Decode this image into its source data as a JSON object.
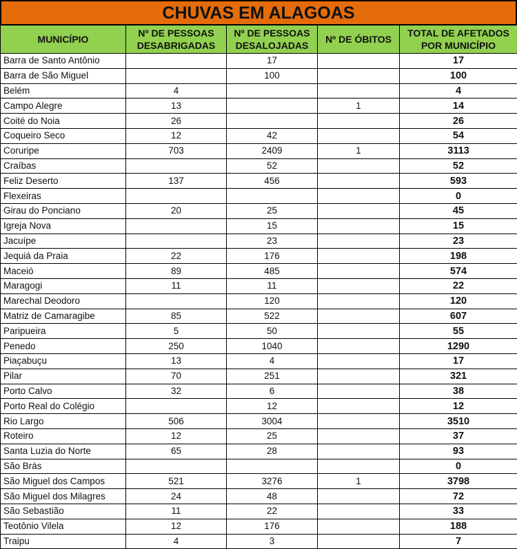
{
  "title": "CHUVAS EM ALAGOAS",
  "headers": [
    "MUNICÍPIO",
    "Nº DE PESSOAS DESABRIGADAS",
    "Nº DE PESSOAS DESALOJADAS",
    "Nº DE ÓBITOS",
    "TOTAL DE AFETADOS POR MUNICÍPIO"
  ],
  "rows": [
    [
      "Barra de Santo Antônio",
      "",
      "17",
      "",
      "17"
    ],
    [
      "Barra de São Miguel",
      "",
      "100",
      "",
      "100"
    ],
    [
      "Belém",
      "4",
      "",
      "",
      "4"
    ],
    [
      "Campo Alegre",
      "13",
      "",
      "1",
      "14"
    ],
    [
      "Coité do Noia",
      "26",
      "",
      "",
      "26"
    ],
    [
      "Coqueiro Seco",
      "12",
      "42",
      "",
      "54"
    ],
    [
      "Coruripe",
      "703",
      "2409",
      "1",
      "3113"
    ],
    [
      "Craíbas",
      "",
      "52",
      "",
      "52"
    ],
    [
      "Feliz Deserto",
      "137",
      "456",
      "",
      "593"
    ],
    [
      "Flexeiras",
      "",
      "",
      "",
      "0"
    ],
    [
      "Girau do Ponciano",
      "20",
      "25",
      "",
      "45"
    ],
    [
      "Igreja Nova",
      "",
      "15",
      "",
      "15"
    ],
    [
      "Jacuípe",
      "",
      "23",
      "",
      "23"
    ],
    [
      "Jequiá da Praia",
      "22",
      "176",
      "",
      "198"
    ],
    [
      "Maceió",
      "89",
      "485",
      "",
      "574"
    ],
    [
      "Maragogi",
      "11",
      "11",
      "",
      "22"
    ],
    [
      "Marechal Deodoro",
      "",
      "120",
      "",
      "120"
    ],
    [
      "Matriz de Camaragibe",
      "85",
      "522",
      "",
      "607"
    ],
    [
      "Paripueira",
      "5",
      "50",
      "",
      "55"
    ],
    [
      "Penedo",
      "250",
      "1040",
      "",
      "1290"
    ],
    [
      "Piaçabuçu",
      "13",
      "4",
      "",
      "17"
    ],
    [
      "Pilar",
      "70",
      "251",
      "",
      "321"
    ],
    [
      "Porto Calvo",
      "32",
      "6",
      "",
      "38"
    ],
    [
      "Porto Real do Colégio",
      "",
      "12",
      "",
      "12"
    ],
    [
      "Rio Largo",
      "506",
      "3004",
      "",
      "3510"
    ],
    [
      "Roteiro",
      "12",
      "25",
      "",
      "37"
    ],
    [
      "Santa Luzia do Norte",
      "65",
      "28",
      "",
      "93"
    ],
    [
      "São Brás",
      "",
      "",
      "",
      "0"
    ],
    [
      "São Miguel dos Campos",
      "521",
      "3276",
      "1",
      "3798"
    ],
    [
      "São Miguel dos Milagres",
      "24",
      "48",
      "",
      "72"
    ],
    [
      "São Sebastião",
      "11",
      "22",
      "",
      "33"
    ],
    [
      "Teotônio Vilela",
      "12",
      "176",
      "",
      "188"
    ],
    [
      "Traipu",
      "4",
      "3",
      "",
      "7"
    ]
  ]
}
